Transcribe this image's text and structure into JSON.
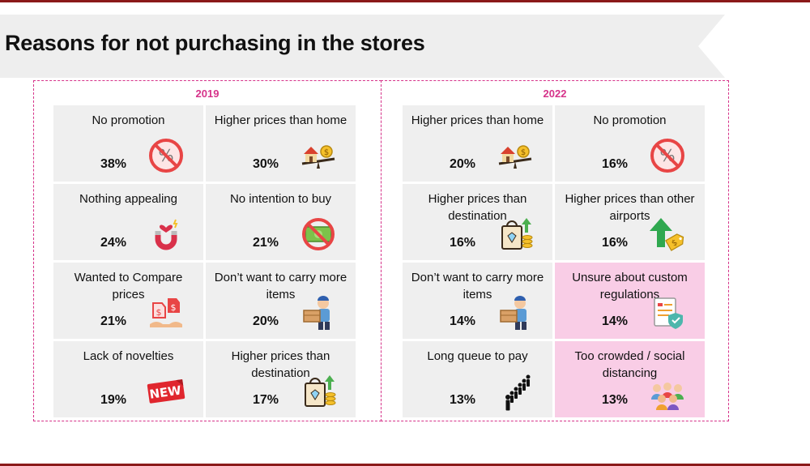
{
  "title": "Reasons for not purchasing in the stores",
  "colors": {
    "accent": "#d6338a",
    "cell": "#efefef",
    "highlight": "#f9cde6",
    "rule": "#8b1a1a"
  },
  "panels": [
    {
      "year": "2019",
      "items": [
        {
          "label": "No promotion",
          "value": "38%",
          "icon": "no-promotion-icon"
        },
        {
          "label": "Higher prices than home",
          "value": "30%",
          "icon": "house-scale-icon"
        },
        {
          "label": "Nothing appealing",
          "value": "24%",
          "icon": "magnet-heart-icon"
        },
        {
          "label": "No intention to buy",
          "value": "21%",
          "icon": "no-money-icon"
        },
        {
          "label": "Wanted to Compare prices",
          "value": "21%",
          "icon": "price-tags-icon"
        },
        {
          "label": "Don’t want to carry more items",
          "value": "20%",
          "icon": "person-carrying-box-icon"
        },
        {
          "label": "Lack of novelties",
          "value": "19%",
          "icon": "new-badge-icon",
          "icon_text": "NEW"
        },
        {
          "label": "Higher prices than destination",
          "value": "17%",
          "icon": "shopping-bag-coins-icon"
        }
      ]
    },
    {
      "year": "2022",
      "items": [
        {
          "label": "Higher prices than home",
          "value": "20%",
          "icon": "house-scale-icon"
        },
        {
          "label": "No promotion",
          "value": "16%",
          "icon": "no-promotion-icon"
        },
        {
          "label": "Higher prices than destination",
          "value": "16%",
          "icon": "shopping-bag-coins-icon"
        },
        {
          "label": "Higher prices than other airports",
          "value": "16%",
          "icon": "price-up-arrow-icon"
        },
        {
          "label": "Don’t want to carry more items",
          "value": "14%",
          "icon": "person-carrying-box-icon"
        },
        {
          "label": "Unsure about custom regulations",
          "value": "14%",
          "icon": "regulations-document-icon",
          "highlight": true
        },
        {
          "label": "Long queue to pay",
          "value": "13%",
          "icon": "queue-icon"
        },
        {
          "label": "Too crowded / social distancing",
          "value": "13%",
          "icon": "crowd-icon",
          "highlight": true
        }
      ]
    }
  ]
}
